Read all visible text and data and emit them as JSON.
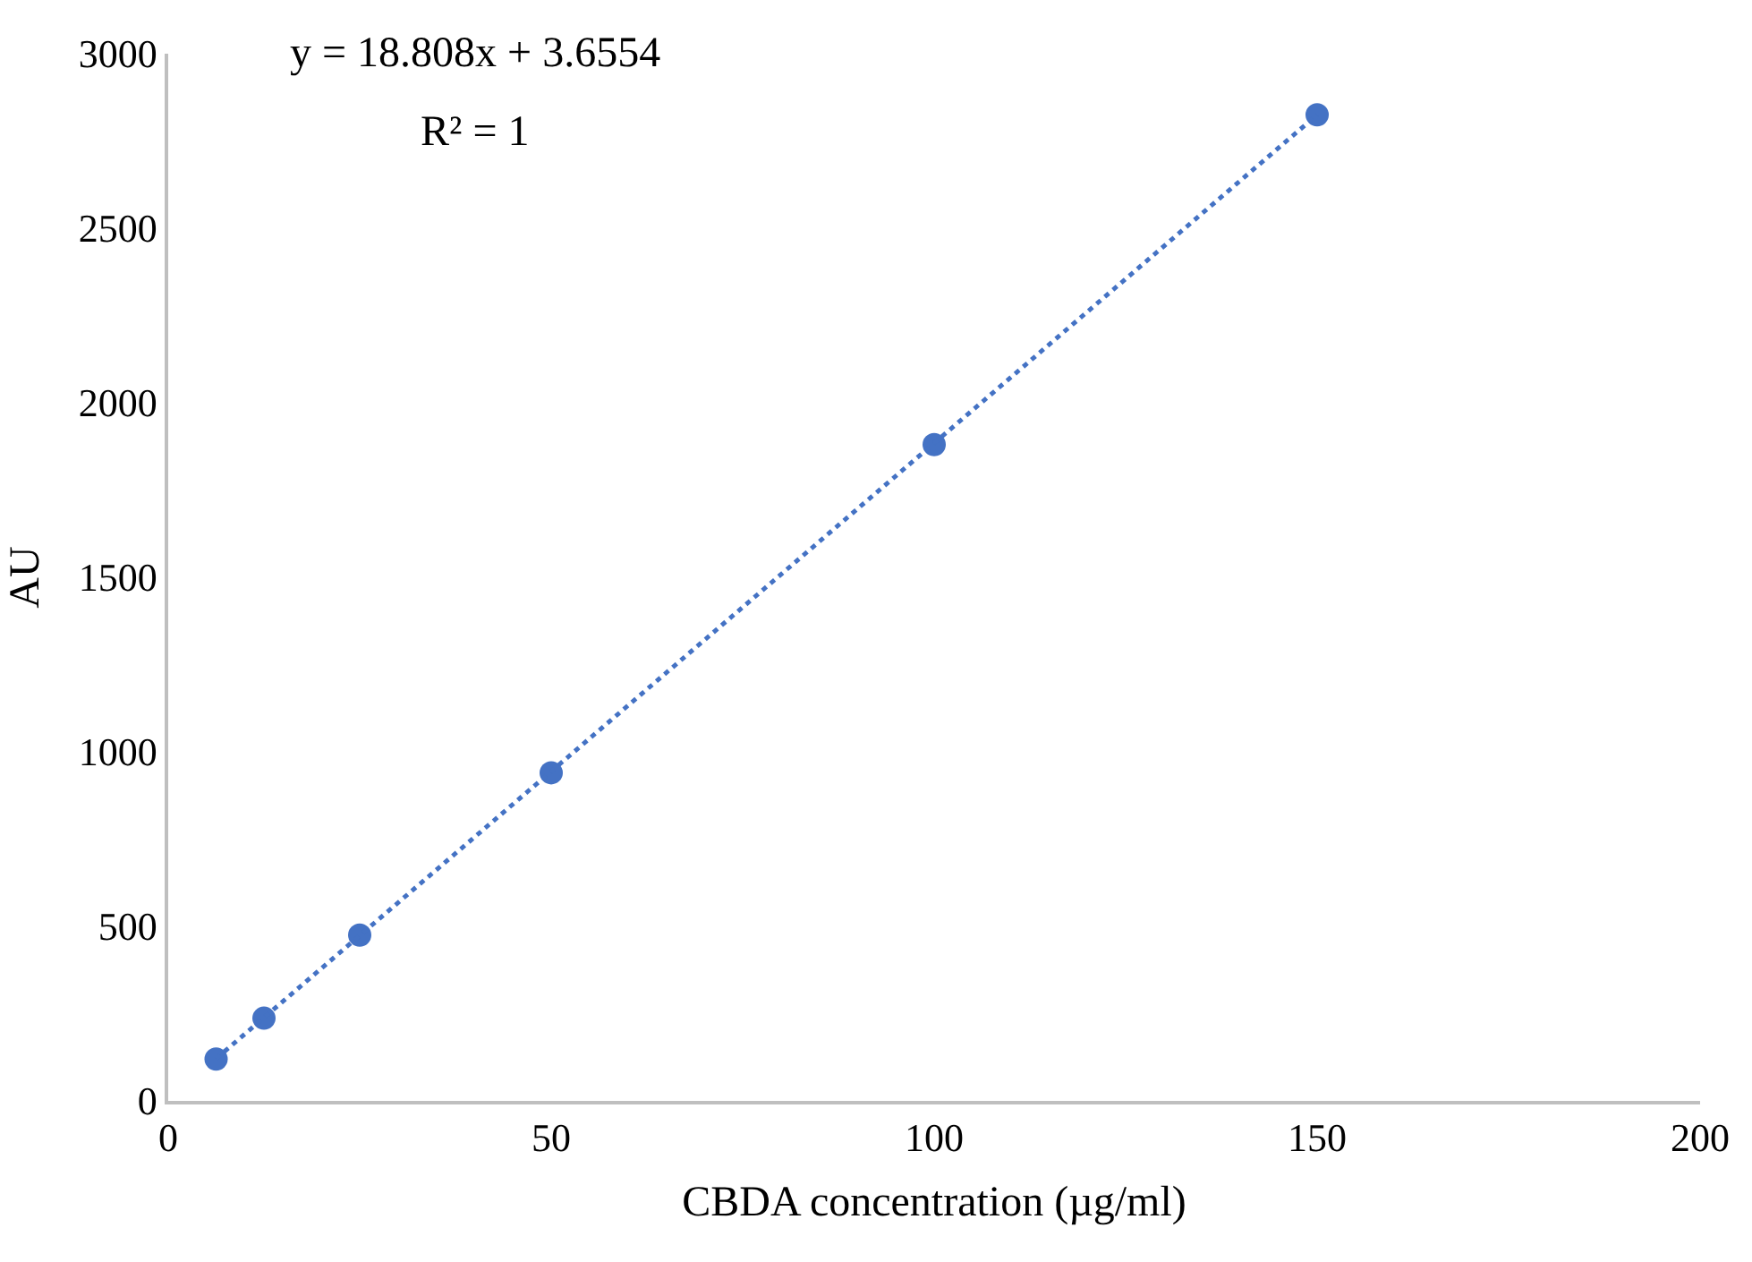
{
  "chart_data": {
    "type": "scatter",
    "xlabel": "CBDA concentration (µg/ml)",
    "ylabel": "AU",
    "xlim": [
      0,
      200
    ],
    "xticks": [
      0,
      50,
      100,
      150,
      200
    ],
    "ylim": [
      0,
      3000
    ],
    "yticks": [
      0,
      500,
      1000,
      1500,
      2000,
      2500,
      3000
    ],
    "annotations": [
      "y = 18.808x + 3.6554",
      "R² = 1"
    ],
    "series": [
      {
        "color": "#4472c4",
        "marker": "circle",
        "x": [
          6.25,
          12.5,
          25,
          50,
          100,
          150
        ],
        "values": [
          120,
          237,
          475,
          940,
          1880,
          2825
        ]
      },
      {
        "type": "line",
        "color": "#4472c4",
        "marker": "none",
        "line_style": "dotted",
        "x": [
          6.25,
          150
        ],
        "values": [
          121,
          2825
        ]
      }
    ]
  }
}
